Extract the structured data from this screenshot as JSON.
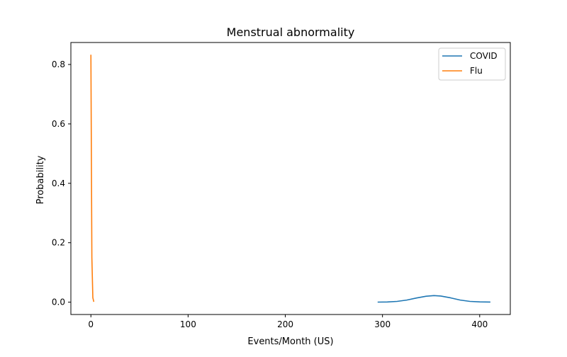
{
  "chart_data": {
    "type": "line",
    "title": "Menstrual abnormality",
    "xlabel": "Events/Month (US)",
    "ylabel": "Probability",
    "xlim": [
      -20.6,
      431.5
    ],
    "ylim": [
      -0.0416,
      0.874
    ],
    "xticks": [
      0,
      100,
      200,
      300,
      400
    ],
    "yticks": [
      0.0,
      0.2,
      0.4,
      0.6,
      0.8
    ],
    "xtick_labels": [
      "0",
      "100",
      "200",
      "300",
      "400"
    ],
    "ytick_labels": [
      "0.0",
      "0.2",
      "0.4",
      "0.6",
      "0.8"
    ],
    "legend": {
      "location": "upper right",
      "entries": [
        "COVID",
        "Flu"
      ]
    },
    "grid": false,
    "series": [
      {
        "name": "COVID",
        "color": "#1f77b4",
        "x": [
          295,
          305,
          315,
          325,
          335,
          345,
          353,
          360,
          370,
          380,
          390,
          400,
          411
        ],
        "y": [
          0.0001,
          0.0006,
          0.0025,
          0.007,
          0.014,
          0.02,
          0.022,
          0.0205,
          0.0145,
          0.007,
          0.0025,
          0.0008,
          0.0002
        ]
      },
      {
        "name": "Flu",
        "color": "#ff7f0e",
        "x": [
          0,
          1,
          2,
          3
        ],
        "y": [
          0.833,
          0.15,
          0.015,
          0.001
        ]
      }
    ]
  }
}
